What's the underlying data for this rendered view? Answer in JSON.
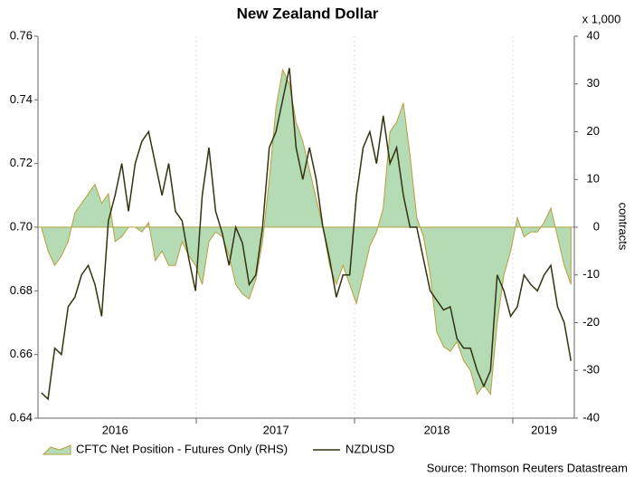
{
  "chart_data": {
    "type": "line",
    "title": "New Zealand Dollar",
    "y2_unit": "x 1,000",
    "y2_label": "contracts",
    "source": "Source: Thomson Reuters Datastream",
    "categories": [
      null,
      null,
      null,
      null,
      null,
      null,
      null,
      null,
      null,
      null,
      null,
      "2016",
      null,
      null,
      null,
      null,
      null,
      null,
      null,
      null,
      null,
      null,
      null,
      null,
      null,
      null,
      null,
      null,
      null,
      null,
      null,
      null,
      null,
      null,
      null,
      "2017",
      null,
      null,
      null,
      null,
      null,
      null,
      null,
      null,
      null,
      null,
      null,
      null,
      null,
      null,
      null,
      null,
      null,
      null,
      null,
      null,
      null,
      null,
      null,
      "2018",
      null,
      null,
      null,
      null,
      null,
      null,
      null,
      null,
      null,
      null,
      null,
      null,
      null,
      null,
      null,
      "2019",
      null,
      null,
      null,
      null
    ],
    "ylim": [
      0.64,
      0.76
    ],
    "yticks": [
      0.64,
      0.66,
      0.68,
      {
        "value": 0.7,
        "label": "0.70"
      },
      0.72,
      0.74,
      0.76
    ],
    "y2lim": [
      -40,
      40
    ],
    "y2ticks": [
      -40,
      -30,
      -20,
      -10,
      0,
      10,
      20,
      30,
      40
    ],
    "legend": "bottom",
    "series": [
      {
        "name": "CFTC Net Position - Futures Only (RHS)",
        "type": "area",
        "axis": "y2",
        "color": "#b5dbb5",
        "stroke": "#b5a03c",
        "values": [
          0,
          -5,
          -8,
          -6,
          -3,
          3,
          5,
          7,
          9,
          5,
          7,
          -3,
          -2,
          0,
          0,
          -1,
          1,
          -7,
          -5,
          -8,
          -8,
          -3,
          -6,
          -8,
          -12,
          -3,
          -1,
          -2,
          -6,
          -12,
          -14,
          -15,
          -11,
          -3,
          10,
          25,
          33,
          30,
          22,
          18,
          12,
          6,
          0,
          -8,
          -12,
          -8,
          -12,
          -16,
          -10,
          -4,
          -1,
          4,
          20,
          22,
          26,
          15,
          2,
          -2,
          -10,
          -22,
          -25,
          -26,
          -24,
          -28,
          -30,
          -35,
          -33,
          -35,
          -20,
          -10,
          -5,
          2,
          -2,
          -1,
          -1,
          1,
          4,
          -2,
          -8,
          -12
        ]
      },
      {
        "name": "NZDUSD",
        "type": "line",
        "color": "#33330f",
        "values": [
          0.648,
          0.646,
          0.662,
          0.66,
          0.675,
          0.678,
          0.685,
          0.688,
          0.682,
          0.672,
          0.702,
          0.71,
          0.72,
          0.705,
          0.72,
          0.727,
          0.73,
          0.72,
          0.71,
          0.72,
          0.705,
          0.702,
          0.69,
          0.68,
          0.71,
          0.725,
          0.705,
          0.698,
          0.688,
          0.7,
          0.695,
          0.682,
          0.685,
          0.7,
          0.725,
          0.73,
          0.74,
          0.75,
          0.725,
          0.715,
          0.725,
          0.715,
          0.7,
          0.69,
          0.678,
          0.685,
          0.685,
          0.71,
          0.725,
          0.73,
          0.72,
          0.735,
          0.72,
          0.725,
          0.71,
          0.7,
          0.7,
          0.69,
          0.68,
          0.677,
          0.674,
          0.675,
          0.665,
          0.662,
          0.662,
          0.655,
          0.65,
          0.655,
          0.685,
          0.68,
          0.672,
          0.675,
          0.685,
          0.682,
          0.68,
          0.685,
          0.688,
          0.675,
          0.67,
          0.658
        ]
      }
    ]
  }
}
